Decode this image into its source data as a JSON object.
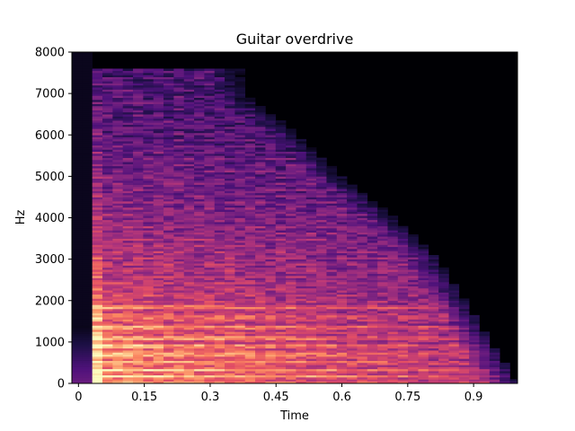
{
  "chart_data": {
    "type": "heatmap",
    "title": "Guitar overdrive",
    "xlabel": "Time",
    "ylabel": "Hz",
    "xlim": [
      -0.015,
      1.0
    ],
    "ylim": [
      0,
      8000
    ],
    "x_ticks": [
      0,
      0.15,
      0.3,
      0.45,
      0.6,
      0.75,
      0.9
    ],
    "x_tick_labels": [
      "0",
      "0.15",
      "0.3",
      "0.45",
      "0.6",
      "0.75",
      "0.9"
    ],
    "y_ticks": [
      0,
      1000,
      2000,
      3000,
      4000,
      5000,
      6000,
      7000,
      8000
    ],
    "y_tick_labels": [
      "0",
      "1000",
      "2000",
      "3000",
      "4000",
      "5000",
      "6000",
      "7000",
      "8000"
    ],
    "colormap": "magma",
    "background_color": "#000004",
    "energy_profile": {
      "onset_time": 0.023,
      "peak_band_time": [
        0.023,
        0.046
      ],
      "decay_end_time": [
        {
          "hz": 0,
          "time": 1.0
        },
        {
          "hz": 1000,
          "time": 0.94
        },
        {
          "hz": 2000,
          "time": 0.88
        },
        {
          "hz": 3000,
          "time": 0.82
        },
        {
          "hz": 4000,
          "time": 0.72
        },
        {
          "hz": 5000,
          "time": 0.6
        },
        {
          "hz": 6000,
          "time": 0.5
        },
        {
          "hz": 7000,
          "time": 0.38
        },
        {
          "hz": 7500,
          "time": 0.37
        }
      ],
      "harmonic_bands_hz": [
        180,
        330,
        520,
        700,
        900,
        1100,
        1350,
        1600,
        1850
      ]
    }
  }
}
